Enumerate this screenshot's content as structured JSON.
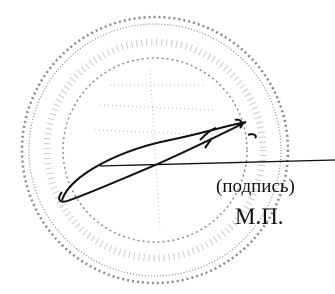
{
  "caption": "(подпись)",
  "seal_mark": "М.П."
}
